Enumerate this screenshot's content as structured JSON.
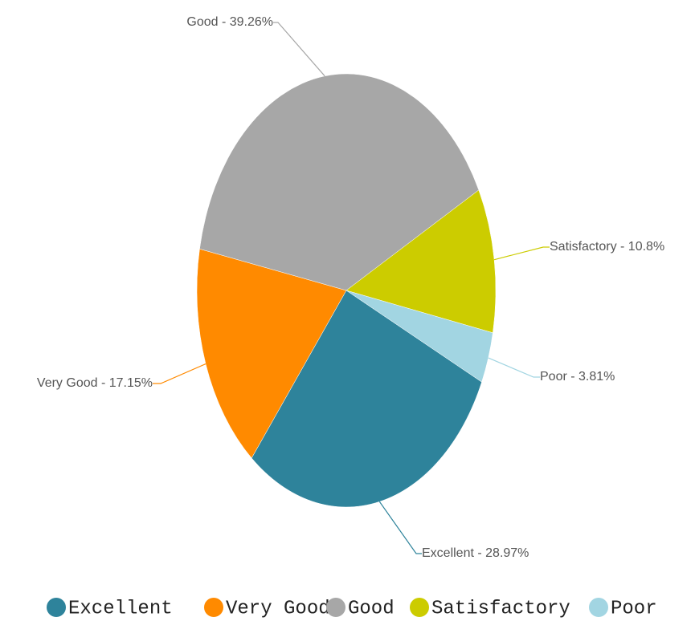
{
  "chart_data": {
    "type": "pie",
    "categories": [
      "Excellent",
      "Very Good",
      "Good",
      "Satisfactory",
      "Poor"
    ],
    "values": [
      28.97,
      17.15,
      39.26,
      10.8,
      3.81
    ],
    "value_labels": [
      "Excellent - 28.97%",
      "Very Good - 17.15%",
      "Good - 39.26%",
      "Satisfactory - 10.8%",
      "Poor - 3.81%"
    ],
    "colors": [
      "#2e839b",
      "#ff8a00",
      "#a7a7a7",
      "#cccc00",
      "#a2d5e2"
    ],
    "legend": "bottom"
  }
}
